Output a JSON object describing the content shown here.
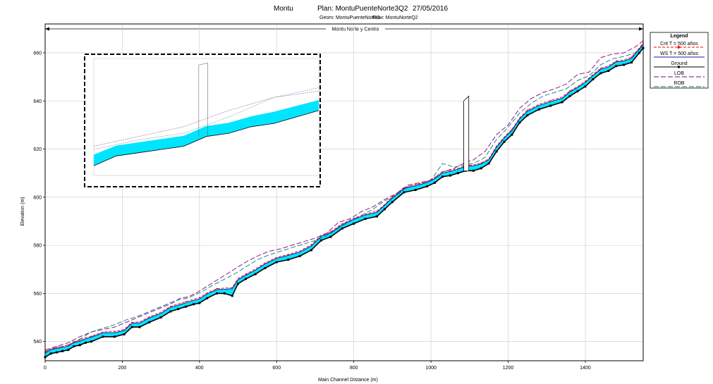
{
  "header": {
    "project": "Montu",
    "plan": "Plan: MontuPuenteNorte3Q2",
    "date": "27/05/2016",
    "geom": "Geom: MontuPuenteNorte3",
    "flow": "Flow: MontuNorteQ2"
  },
  "colors": {
    "fill": "#00e5ff",
    "crit": "#ff0000",
    "ws": "#1a1aa0",
    "ground": "#000000",
    "lob": "#800080",
    "rob": "#008080",
    "grid": "#c8c8c8",
    "structure": "#000000"
  },
  "chart_data": {
    "type": "line",
    "xlabel": "Main Channel Distance (m)",
    "ylabel": "Elevation (m)",
    "xlim": [
      0,
      1550
    ],
    "ylim": [
      532,
      672
    ],
    "xticks": [
      0,
      200,
      400,
      600,
      800,
      1000,
      1200,
      1400
    ],
    "yticks": [
      540,
      560,
      580,
      600,
      620,
      640,
      660
    ],
    "grid": true,
    "legend_position": "right",
    "reach_label": "Montu Norte y Centro",
    "legend": {
      "title": "Legend",
      "items": [
        "Crit  T = 500 años",
        "WS  T = 500 años",
        "Ground",
        "LOB",
        "ROB"
      ]
    },
    "series": [
      {
        "name": "Ground",
        "x": [
          0,
          15,
          30,
          45,
          60,
          75,
          90,
          105,
          120,
          150,
          180,
          205,
          225,
          245,
          270,
          300,
          325,
          345,
          365,
          385,
          400,
          420,
          445,
          465,
          485,
          500,
          520,
          545,
          570,
          600,
          630,
          660,
          690,
          715,
          740,
          770,
          800,
          830,
          860,
          880,
          900,
          930,
          960,
          990,
          1010,
          1030,
          1050,
          1070,
          1090,
          1110,
          1130,
          1150,
          1170,
          1190,
          1210,
          1230,
          1250,
          1280,
          1310,
          1340,
          1360,
          1380,
          1400,
          1420,
          1440,
          1460,
          1480,
          1500,
          1520,
          1540,
          1550
        ],
        "y": [
          533.5,
          535,
          535.5,
          536,
          536.5,
          538,
          538.5,
          539.5,
          540,
          542,
          542,
          543,
          546,
          546,
          548,
          550,
          552.5,
          553.5,
          554.5,
          555.5,
          556,
          558,
          560,
          560,
          559,
          564,
          566,
          568,
          570.5,
          573,
          574,
          575.5,
          578,
          582,
          583.5,
          587,
          589,
          591,
          592,
          595,
          598,
          602,
          603,
          604.5,
          606,
          608.5,
          609,
          610,
          611,
          611,
          612,
          614,
          619,
          623,
          626,
          631,
          634,
          636.5,
          638,
          639.5,
          642,
          644,
          646,
          649,
          651.5,
          652.5,
          654.5,
          655,
          656,
          660,
          662
        ]
      },
      {
        "name": "WS  T = 500 años",
        "x": [
          0,
          15,
          30,
          45,
          60,
          75,
          90,
          105,
          120,
          150,
          180,
          205,
          225,
          245,
          270,
          300,
          325,
          345,
          365,
          385,
          400,
          420,
          445,
          465,
          485,
          500,
          520,
          545,
          570,
          600,
          630,
          660,
          690,
          715,
          740,
          770,
          800,
          830,
          860,
          880,
          900,
          930,
          960,
          990,
          1010,
          1030,
          1050,
          1070,
          1090,
          1110,
          1130,
          1150,
          1170,
          1190,
          1210,
          1230,
          1250,
          1280,
          1310,
          1340,
          1360,
          1380,
          1400,
          1420,
          1440,
          1460,
          1480,
          1500,
          1520,
          1540,
          1550
        ],
        "y": [
          535.2,
          536.6,
          537.1,
          537.6,
          538.1,
          539.6,
          540.1,
          541.1,
          541.8,
          543.6,
          543.7,
          544.6,
          547.6,
          547.7,
          549.8,
          551.7,
          554.2,
          555.1,
          556.1,
          557.1,
          557.7,
          559.8,
          561.6,
          561.7,
          562,
          565.7,
          567.6,
          569.7,
          572.2,
          574.6,
          575.8,
          577.2,
          579.7,
          583.7,
          585.2,
          588.6,
          590.8,
          592.6,
          593.7,
          596.6,
          599.7,
          603.6,
          604.7,
          606.1,
          607.7,
          610.1,
          610.7,
          611.6,
          612.8,
          613,
          613.8,
          615.6,
          620.8,
          624.6,
          627.8,
          632.6,
          635.7,
          638.1,
          639.7,
          641.1,
          643.8,
          645.6,
          647.7,
          650.6,
          653.2,
          654.1,
          656.2,
          656.6,
          657.7,
          661.6,
          663.6
        ]
      },
      {
        "name": "Crit  T = 500 años",
        "x": [
          0,
          15,
          30,
          45,
          60,
          75,
          90,
          105,
          120,
          150,
          180,
          205,
          225,
          245,
          270,
          300,
          325,
          345,
          365,
          385,
          400,
          420,
          445,
          465,
          485,
          500,
          520,
          545,
          570,
          600,
          630,
          660,
          690,
          715,
          740,
          770,
          800,
          830,
          860,
          880,
          900,
          930,
          960,
          990,
          1010,
          1030,
          1050,
          1070,
          1090,
          1110,
          1130,
          1150,
          1170,
          1190,
          1210,
          1230,
          1250,
          1280,
          1310,
          1340,
          1360,
          1380,
          1400,
          1420,
          1440,
          1460,
          1480,
          1500,
          1520,
          1540,
          1550
        ],
        "y": [
          535.6,
          537,
          537.6,
          538,
          538.6,
          540,
          540.6,
          541.6,
          542.2,
          544,
          544.2,
          545,
          548,
          548.2,
          550.2,
          552.2,
          554.6,
          555.6,
          556.6,
          557.6,
          558.2,
          560.2,
          562,
          562.2,
          562.4,
          566.2,
          568,
          570.2,
          572.6,
          575,
          576.2,
          577.6,
          580.2,
          584.2,
          585.6,
          589,
          591.2,
          593,
          594.2,
          597,
          600.2,
          604,
          605.2,
          606.6,
          608.2,
          610.6,
          611.2,
          612,
          613.2,
          613.4,
          614.2,
          616,
          621.2,
          625,
          628.2,
          633,
          636.2,
          638.6,
          640.2,
          641.6,
          644.2,
          646,
          648.2,
          651,
          653.6,
          654.6,
          656.6,
          657,
          658.2,
          662,
          664
        ]
      },
      {
        "name": "LOB",
        "x": [
          0,
          30,
          60,
          90,
          120,
          150,
          180,
          210,
          240,
          270,
          300,
          330,
          350,
          370,
          390,
          410,
          430,
          460,
          490,
          520,
          550,
          580,
          610,
          640,
          670,
          700,
          730,
          760,
          790,
          820,
          850,
          880,
          910,
          940,
          970,
          1000,
          1030,
          1060,
          1090,
          1110,
          1140,
          1170,
          1200,
          1230,
          1260,
          1290,
          1320,
          1350,
          1380,
          1410,
          1440,
          1470,
          1500,
          1530,
          1550
        ],
        "y": [
          536.5,
          538,
          539.5,
          542,
          544,
          545,
          546,
          548,
          550,
          552,
          554,
          556,
          558,
          558.5,
          560,
          562,
          564,
          567,
          570,
          573,
          575.5,
          577.5,
          578.5,
          580,
          581.5,
          583,
          585,
          589.5,
          591,
          594,
          596,
          599,
          601.5,
          605,
          606,
          607,
          610.5,
          612,
          614.5,
          615.5,
          619,
          626,
          630,
          637,
          641,
          643.5,
          645,
          647,
          651,
          652,
          658,
          659.5,
          660,
          662.5,
          665
        ]
      },
      {
        "name": "ROB",
        "x": [
          0,
          30,
          60,
          90,
          120,
          150,
          180,
          210,
          240,
          270,
          300,
          330,
          350,
          370,
          390,
          410,
          430,
          460,
          490,
          520,
          550,
          580,
          610,
          640,
          670,
          700,
          730,
          760,
          790,
          820,
          850,
          880,
          910,
          940,
          970,
          1000,
          1030,
          1060,
          1090,
          1110,
          1140,
          1170,
          1200,
          1230,
          1260,
          1290,
          1320,
          1350,
          1380,
          1410,
          1440,
          1470,
          1500,
          1530,
          1550
        ],
        "y": [
          536,
          537.5,
          538.5,
          541,
          544,
          545.5,
          547,
          549,
          550.5,
          552.5,
          554.5,
          556.5,
          557.5,
          558,
          559.5,
          561,
          563,
          565.5,
          568,
          571,
          574,
          576,
          577.5,
          579,
          580.5,
          582,
          584,
          587,
          590,
          592.5,
          595,
          598.5,
          600.5,
          604.5,
          605.5,
          607,
          614,
          612.5,
          613.5,
          614,
          616.5,
          624,
          629,
          635,
          639,
          642,
          643.5,
          645,
          648.5,
          650.5,
          655,
          657.5,
          658.5,
          660,
          663
        ]
      }
    ],
    "bridge": {
      "x": [
        1085,
        1098
      ],
      "bottom": 611,
      "top": 642
    }
  }
}
